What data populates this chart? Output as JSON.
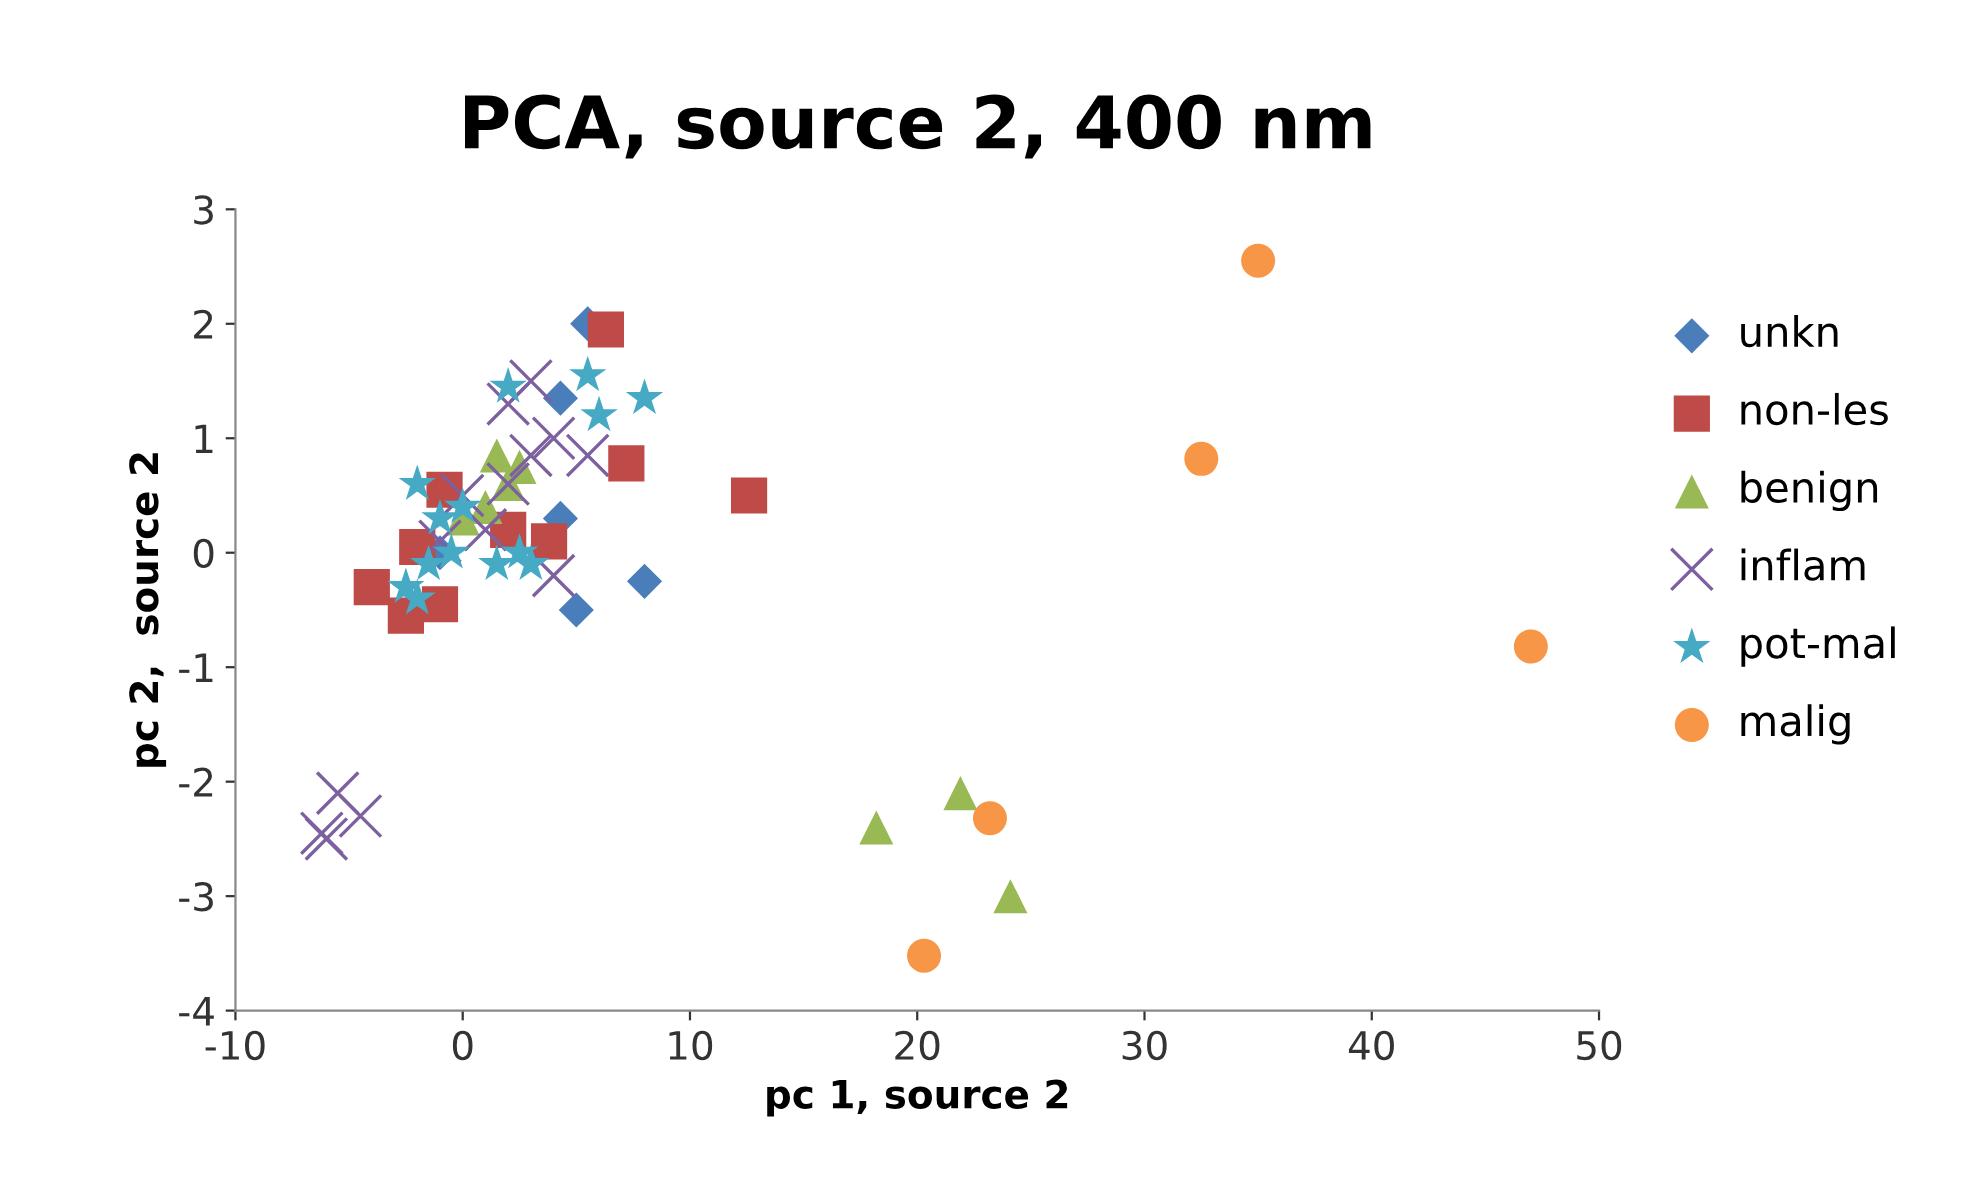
{
  "chart_data": {
    "type": "scatter",
    "title": "PCA, source 2, 400 nm",
    "xlabel": "pc 1, source 2",
    "ylabel": "pc 2,  source 2",
    "xlim": [
      -10,
      50
    ],
    "xticks": [
      -10,
      0,
      10,
      20,
      30,
      40,
      50
    ],
    "ylim": [
      -4,
      3
    ],
    "yticks": [
      -4,
      -3,
      -2,
      -1,
      0,
      1,
      2,
      3
    ],
    "grid": false,
    "legend": "right",
    "series": [
      {
        "name": "unkn",
        "color": "#4a7ebb",
        "marker": "diamond",
        "x": [
          5.5,
          4.3,
          4.3,
          5,
          8,
          -1
        ],
        "values": [
          2.0,
          1.35,
          0.3,
          -0.5,
          -0.25,
          0
        ]
      },
      {
        "name": "non-les",
        "color": "#be4b48",
        "marker": "square",
        "x": [
          6.3,
          7.2,
          12.6,
          3.8,
          -4,
          -2.5,
          -1,
          -0.8,
          2,
          -2
        ],
        "values": [
          1.95,
          0.78,
          0.5,
          0.1,
          -0.3,
          -0.55,
          -0.45,
          0.55,
          0.2,
          0.05
        ]
      },
      {
        "name": "benign",
        "color": "#98b954",
        "marker": "triangle",
        "x": [
          18.2,
          21.9,
          24.1,
          1.5,
          2.5,
          2,
          1,
          0
        ],
        "values": [
          -2.4,
          -2.1,
          -3.0,
          0.85,
          0.75,
          0.6,
          0.4,
          0.3
        ]
      },
      {
        "name": "inflam",
        "color": "#7d60a0",
        "marker": "cross",
        "x": [
          -6,
          -5.5,
          -4.5,
          -6.2,
          3,
          2,
          4,
          5.5,
          3,
          4,
          2,
          0,
          -1,
          1
        ],
        "values": [
          -2.5,
          -2.1,
          -2.3,
          -2.45,
          1.5,
          1.3,
          1.0,
          0.85,
          0.85,
          -0.2,
          0.6,
          0.5,
          0.1,
          0.2
        ]
      },
      {
        "name": "pot-mal",
        "color": "#46aac5",
        "marker": "star",
        "x": [
          2,
          5.5,
          6,
          8,
          -2,
          -1,
          -1.5,
          -2,
          1.5,
          3,
          0,
          -0.5,
          -2.5,
          2.5
        ],
        "values": [
          1.45,
          1.55,
          1.2,
          1.35,
          0.6,
          0.3,
          -0.1,
          -0.4,
          -0.1,
          -0.1,
          0.4,
          0,
          -0.3,
          0.0
        ]
      },
      {
        "name": "malig",
        "color": "#f79646",
        "marker": "circle",
        "x": [
          35,
          32.5,
          47,
          23.2,
          20.3
        ],
        "values": [
          2.55,
          0.82,
          -0.82,
          -2.32,
          -3.52
        ]
      }
    ]
  }
}
